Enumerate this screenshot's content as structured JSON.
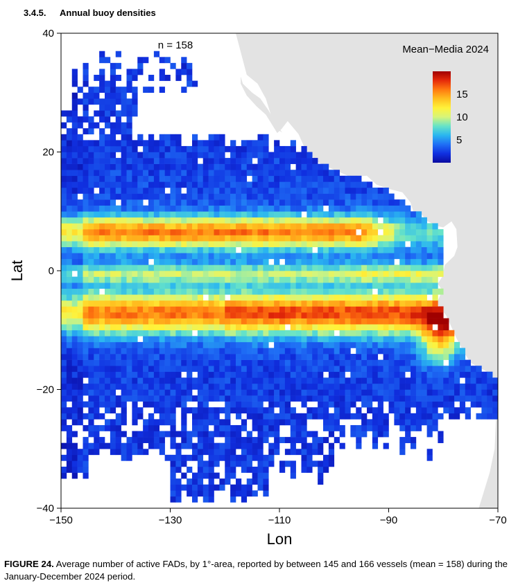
{
  "section": {
    "number": "3.4.5.",
    "title": "Annual buoy densities"
  },
  "caption": {
    "label": "FIGURE 24.",
    "text": " Average number of active FADs, by 1°-area, reported by between 145 and 166 vessels (mean = 158) during the January-December 2024 period."
  },
  "chart_data": {
    "type": "heatmap",
    "title": "Mean−Media 2024",
    "annotation": "n = 158",
    "xlabel": "Lon",
    "ylabel": "Lat",
    "xlim": [
      -150,
      -70
    ],
    "ylim": [
      -40,
      40
    ],
    "xticks": [
      -150,
      -130,
      -110,
      -90,
      -70
    ],
    "xtick_labels": [
      "−150",
      "−130",
      "−110",
      "−90",
      "−70"
    ],
    "yticks": [
      -40,
      -20,
      0,
      20,
      40
    ],
    "ytick_labels": [
      "−40",
      "−20",
      "0",
      "20",
      "40"
    ],
    "cell_size_deg": 1,
    "colorbar": {
      "min": 0,
      "max": 20,
      "ticks": [
        5,
        10,
        15
      ],
      "tick_labels": [
        "5",
        "10",
        "15"
      ],
      "placement": "top-right"
    },
    "colors": {
      "land": "#e3e3e3",
      "scale": [
        "#0a0aa0",
        "#1030e0",
        "#1f6ff5",
        "#2ab6f0",
        "#66e3c8",
        "#d6f57a",
        "#fff23a",
        "#ffbf1f",
        "#ff7a10",
        "#e62a0a",
        "#a00000"
      ]
    },
    "density_bands": [
      {
        "name": "north equatorial band",
        "center_lat": 6.5,
        "peak": 13
      },
      {
        "name": "south equatorial band",
        "center_lat": -7,
        "peak": 14
      },
      {
        "name": "peru coastal hotspot",
        "center_lon": -80,
        "center_lat": -11,
        "peak": 18
      }
    ]
  }
}
